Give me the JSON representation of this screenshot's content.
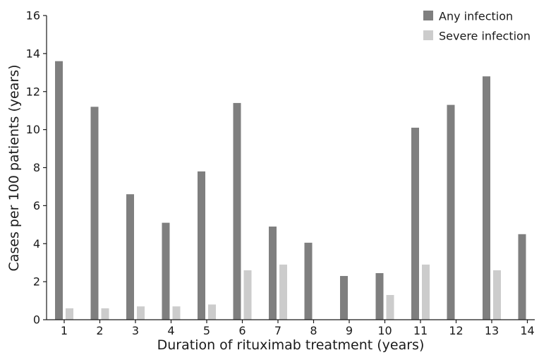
{
  "chart_data": {
    "type": "bar",
    "title": "",
    "xlabel": "Duration of rituximab treatment (years)",
    "ylabel": "Cases per 100 patients (years)",
    "categories": [
      "1",
      "2",
      "3",
      "4",
      "5",
      "6",
      "7",
      "8",
      "9",
      "10",
      "11",
      "12",
      "13",
      "14"
    ],
    "ylim": [
      0,
      16
    ],
    "yticks": [
      "0",
      "2",
      "4",
      "6",
      "8",
      "10",
      "12",
      "14",
      "16"
    ],
    "grid": false,
    "legend_position": "top-right",
    "series": [
      {
        "name": "Any infection",
        "color": "#7f7f7f",
        "values": [
          13.6,
          11.2,
          6.6,
          5.1,
          7.8,
          11.4,
          4.9,
          4.05,
          2.3,
          2.45,
          10.1,
          11.3,
          12.8,
          4.5
        ]
      },
      {
        "name": "Severe infection",
        "color": "#cccccc",
        "values": [
          0.6,
          0.6,
          0.7,
          0.7,
          0.8,
          2.6,
          2.9,
          0,
          0,
          1.3,
          2.9,
          0,
          2.6,
          0
        ]
      }
    ]
  }
}
